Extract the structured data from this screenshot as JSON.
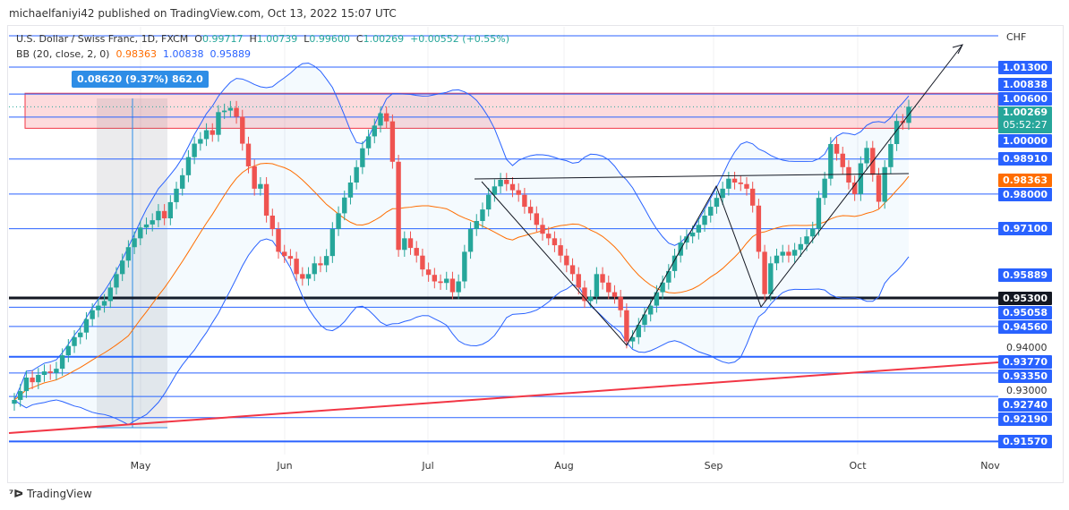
{
  "publisher": "michaelfaniyi42 published on TradingView.com, Oct 13, 2022 15:07 UTC",
  "legend": {
    "symbol": "U.S. Dollar / Swiss Franc, 1D, FXCM",
    "o_label": "O",
    "o": "0.99717",
    "h_label": "H",
    "h": "1.00739",
    "l_label": "L",
    "l": "0.99600",
    "c_label": "C",
    "c": "1.00269",
    "change": "+0.00552 (+0.55%)",
    "bb": "BB (20, close, 2, 0)",
    "bb_basis": "0.98363",
    "bb_upper": "1.00838",
    "bb_lower": "0.95889"
  },
  "measure": "0.08620 (9.37%) 862.0",
  "currency": "CHF",
  "countdown": "05:52:27",
  "brand": "TradingView",
  "colors": {
    "up": "#26a69a",
    "down": "#ef5350",
    "level": "#2962ff",
    "basis": "#ff6d00",
    "support": "#131722",
    "trend": "#f23645"
  },
  "price_labels": [
    {
      "text": "1.01300",
      "price": 1.013,
      "color": "#2962ff"
    },
    {
      "text": "1.00838",
      "price": 1.00838,
      "color": "#2962ff"
    },
    {
      "text": "1.00600",
      "price": 1.006,
      "color": "#2962ff"
    },
    {
      "text": "1.00000",
      "price": 1.0,
      "color": "#2962ff"
    },
    {
      "text": "0.98910",
      "price": 0.9891,
      "color": "#2962ff"
    },
    {
      "text": "0.98363",
      "price": 0.98363,
      "color": "#ff6d00"
    },
    {
      "text": "0.98000",
      "price": 0.98,
      "color": "#2962ff"
    },
    {
      "text": "0.97100",
      "price": 0.971,
      "color": "#2962ff"
    },
    {
      "text": "0.95889",
      "price": 0.95889,
      "color": "#2962ff"
    },
    {
      "text": "0.95300",
      "price": 0.953,
      "color": "#131722"
    },
    {
      "text": "0.95058",
      "price": 0.95058,
      "color": "#2962ff"
    },
    {
      "text": "0.94560",
      "price": 0.9456,
      "color": "#2962ff"
    },
    {
      "text": "0.93770",
      "price": 0.9377,
      "color": "#2962ff"
    },
    {
      "text": "0.93350",
      "price": 0.9335,
      "color": "#2962ff"
    },
    {
      "text": "0.92740",
      "price": 0.9274,
      "color": "#2962ff"
    },
    {
      "text": "0.92190",
      "price": 0.9219,
      "color": "#2962ff"
    },
    {
      "text": "0.91570",
      "price": 0.9157,
      "color": "#2962ff"
    }
  ],
  "chart_data": {
    "type": "candlestick",
    "title": "U.S. Dollar / Swiss Franc, 1D, FXCM",
    "ylim": [
      0.9157,
      1.013
    ],
    "x_ticks": [
      "May",
      "Jun",
      "Jul",
      "Aug",
      "Sep",
      "Oct",
      "Nov"
    ],
    "y_ticks": [
      "0.94000",
      "0.93000"
    ],
    "current": {
      "value": 1.00269,
      "label": "1.00269"
    },
    "levels": [
      1.013,
      1.006,
      1.0,
      0.9891,
      0.98,
      0.971,
      0.953,
      0.95058,
      0.9456,
      0.9377,
      0.9335,
      0.9274,
      0.9219,
      0.9157
    ],
    "zone": [
      0.9971,
      1.0062
    ],
    "closes": [
      0.9265,
      0.9288,
      0.9323,
      0.9311,
      0.933,
      0.9339,
      0.9335,
      0.9346,
      0.9381,
      0.9405,
      0.9428,
      0.944,
      0.9475,
      0.9498,
      0.951,
      0.9522,
      0.9557,
      0.9592,
      0.9627,
      0.9662,
      0.9685,
      0.9713,
      0.9721,
      0.9732,
      0.9756,
      0.9737,
      0.9779,
      0.9814,
      0.9849,
      0.9896,
      0.9931,
      0.9943,
      0.9966,
      0.9954,
      1.0013,
      1.0017,
      1.0024,
      1.0001,
      0.9931,
      0.9872,
      0.9814,
      0.9826,
      0.9744,
      0.9709,
      0.965,
      0.9639,
      0.9632,
      0.9592,
      0.958,
      0.9592,
      0.962,
      0.9615,
      0.9639,
      0.9709,
      0.975,
      0.9791,
      0.983,
      0.987,
      0.9919,
      0.995,
      0.9978,
      1.001,
      0.9989,
      0.9884,
      0.9655,
      0.9685,
      0.966,
      0.964,
      0.9604,
      0.959,
      0.9573,
      0.9569,
      0.958,
      0.9545,
      0.9573,
      0.965,
      0.9709,
      0.973,
      0.976,
      0.9798,
      0.982,
      0.9837,
      0.9826,
      0.981,
      0.9798,
      0.9767,
      0.975,
      0.972,
      0.9697,
      0.9685,
      0.9667,
      0.964,
      0.9615,
      0.9592,
      0.9557,
      0.9522,
      0.9533,
      0.9592,
      0.957,
      0.9545,
      0.9533,
      0.9498,
      0.9417,
      0.9428,
      0.946,
      0.9487,
      0.951,
      0.9545,
      0.957,
      0.96,
      0.964,
      0.9674,
      0.969,
      0.97,
      0.972,
      0.9744,
      0.9767,
      0.979,
      0.9814,
      0.984,
      0.983,
      0.9826,
      0.9814,
      0.977,
      0.965,
      0.954,
      0.962,
      0.964,
      0.965,
      0.964,
      0.9655,
      0.967,
      0.969,
      0.971,
      0.979,
      0.984,
      0.993,
      0.9905,
      0.987,
      0.983,
      0.98,
      0.988,
      0.992,
      0.985,
      0.978,
      0.987,
      0.993,
      0.999,
      0.9985,
      1.0027
    ]
  }
}
